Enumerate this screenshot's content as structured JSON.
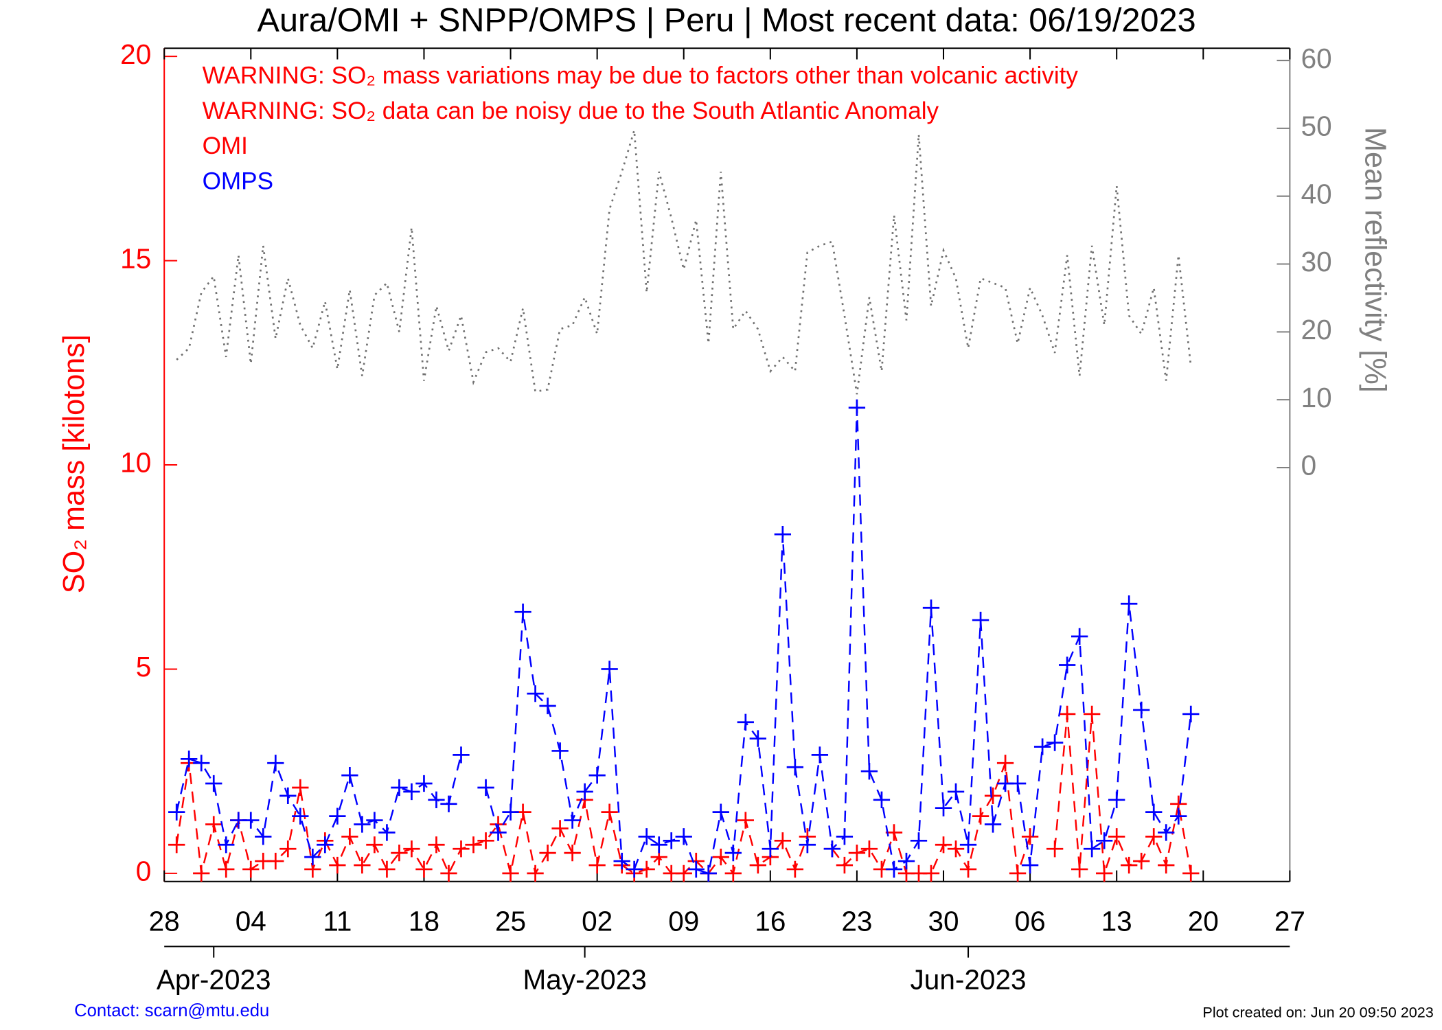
{
  "chart_data": {
    "type": "line",
    "title": "Aura/OMI + SNPP/OMPS | Peru | Most recent data: 06/19/2023",
    "annotations": [
      "WARNING: SO₂ mass variations may be due to factors other than volcanic activity",
      "WARNING: SO₂ data can be noisy due to the South Atlantic Anomaly"
    ],
    "annotation_color": "#ff0000",
    "ylabel": "SO₂ mass [kilotons]",
    "y2label": "Mean reflectivity [%]",
    "y_axis_color": "#ff0000",
    "y2_axis_color": "#808080",
    "footer_left": "Contact: scarn@mtu.edu",
    "footer_left_color": "#0000ff",
    "footer_right": "Plot created on: Jun 20 09:50 2023",
    "xlim": [
      "2023-03-28",
      "2023-06-27"
    ],
    "xticks": [
      {
        "value": "2023-03-28",
        "label": "28"
      },
      {
        "value": "2023-04-04",
        "label": "04"
      },
      {
        "value": "2023-04-11",
        "label": "11"
      },
      {
        "value": "2023-04-18",
        "label": "18"
      },
      {
        "value": "2023-04-25",
        "label": "25"
      },
      {
        "value": "2023-05-02",
        "label": "02"
      },
      {
        "value": "2023-05-09",
        "label": "09"
      },
      {
        "value": "2023-05-16",
        "label": "16"
      },
      {
        "value": "2023-05-23",
        "label": "23"
      },
      {
        "value": "2023-05-30",
        "label": "30"
      },
      {
        "value": "2023-06-06",
        "label": "06"
      },
      {
        "value": "2023-06-13",
        "label": "13"
      },
      {
        "value": "2023-06-20",
        "label": "20"
      },
      {
        "value": "2023-06-27",
        "label": "27"
      }
    ],
    "month_ticks": [
      {
        "value": "2023-04-01",
        "label": "Apr-2023"
      },
      {
        "value": "2023-05-01",
        "label": "May-2023"
      },
      {
        "value": "2023-06-01",
        "label": "Jun-2023"
      }
    ],
    "ylim": [
      -0.2,
      20.2
    ],
    "yticks": [
      0,
      5,
      10,
      15,
      20
    ],
    "y2lim": [
      -61,
      61.8
    ],
    "y2ticks": [
      0,
      10,
      20,
      30,
      40,
      50,
      60
    ],
    "x": [
      "2023-03-29",
      "2023-03-30",
      "2023-03-31",
      "2023-04-01",
      "2023-04-02",
      "2023-04-03",
      "2023-04-04",
      "2023-04-05",
      "2023-04-06",
      "2023-04-07",
      "2023-04-08",
      "2023-04-09",
      "2023-04-10",
      "2023-04-11",
      "2023-04-12",
      "2023-04-13",
      "2023-04-14",
      "2023-04-15",
      "2023-04-16",
      "2023-04-17",
      "2023-04-18",
      "2023-04-19",
      "2023-04-20",
      "2023-04-21",
      "2023-04-22",
      "2023-04-23",
      "2023-04-24",
      "2023-04-25",
      "2023-04-26",
      "2023-04-27",
      "2023-04-28",
      "2023-04-29",
      "2023-04-30",
      "2023-05-01",
      "2023-05-02",
      "2023-05-03",
      "2023-05-04",
      "2023-05-05",
      "2023-05-06",
      "2023-05-07",
      "2023-05-08",
      "2023-05-09",
      "2023-05-10",
      "2023-05-11",
      "2023-05-12",
      "2023-05-13",
      "2023-05-14",
      "2023-05-15",
      "2023-05-16",
      "2023-05-17",
      "2023-05-18",
      "2023-05-19",
      "2023-05-20",
      "2023-05-21",
      "2023-05-22",
      "2023-05-23",
      "2023-05-24",
      "2023-05-25",
      "2023-05-26",
      "2023-05-27",
      "2023-05-28",
      "2023-05-29",
      "2023-05-30",
      "2023-05-31",
      "2023-06-01",
      "2023-06-02",
      "2023-06-03",
      "2023-06-04",
      "2023-06-05",
      "2023-06-06",
      "2023-06-07",
      "2023-06-08",
      "2023-06-09",
      "2023-06-10",
      "2023-06-11",
      "2023-06-12",
      "2023-06-13",
      "2023-06-14",
      "2023-06-15",
      "2023-06-16",
      "2023-06-17",
      "2023-06-18",
      "2023-06-19"
    ],
    "series": [
      {
        "name": "OMI",
        "color": "#ff0000",
        "marker": "+",
        "line_style": "dashed",
        "values": [
          0.7,
          2.7,
          0.0,
          1.2,
          0.1,
          1.3,
          0.1,
          0.3,
          0.3,
          0.6,
          2.1,
          0.1,
          0.8,
          0.2,
          0.9,
          0.2,
          0.7,
          0.1,
          0.5,
          0.6,
          0.1,
          0.7,
          0.0,
          0.6,
          0.7,
          0.8,
          1.2,
          0.0,
          1.5,
          0.0,
          0.5,
          1.1,
          0.5,
          1.8,
          0.2,
          1.5,
          0.2,
          0.0,
          0.1,
          0.4,
          0.0,
          0.0,
          0.3,
          0.0,
          0.4,
          0.0,
          1.3,
          0.2,
          0.4,
          0.8,
          0.1,
          0.9,
          null,
          0.6,
          0.2,
          0.5,
          0.6,
          0.1,
          1.0,
          0.0,
          0.0,
          0.0,
          0.7,
          0.6,
          0.1,
          1.4,
          1.9,
          2.7,
          0.0,
          0.9,
          null,
          0.6,
          3.9,
          0.1,
          3.9,
          0.0,
          0.9,
          0.2,
          0.3,
          0.9,
          0.2,
          1.7,
          0.0
        ]
      },
      {
        "name": "OMPS",
        "color": "#0000ff",
        "marker": "+",
        "line_style": "dashed",
        "values": [
          1.5,
          2.8,
          2.7,
          2.2,
          0.7,
          1.3,
          1.3,
          0.9,
          2.7,
          1.9,
          1.4,
          0.4,
          0.7,
          1.4,
          2.4,
          1.2,
          1.3,
          1.0,
          2.1,
          2.0,
          2.2,
          1.8,
          1.7,
          2.9,
          null,
          2.1,
          1.0,
          1.5,
          6.4,
          4.4,
          4.1,
          3.0,
          1.3,
          2.0,
          2.4,
          5.0,
          0.3,
          0.1,
          0.9,
          0.7,
          0.8,
          0.9,
          0.1,
          0.0,
          1.5,
          0.5,
          3.7,
          3.3,
          0.6,
          8.3,
          2.6,
          0.7,
          2.9,
          0.6,
          0.9,
          11.4,
          2.5,
          1.8,
          0.1,
          0.3,
          0.8,
          6.5,
          1.6,
          2.0,
          0.7,
          6.2,
          1.2,
          2.2,
          2.2,
          0.2,
          3.1,
          3.2,
          5.1,
          5.8,
          0.6,
          0.8,
          1.8,
          6.6,
          4.0,
          1.5,
          1.0,
          1.4,
          3.9
        ]
      },
      {
        "color": "#707070",
        "axis": "y2",
        "line_style": "dotted",
        "values": [
          15.9,
          17.6,
          25.8,
          28.2,
          16.3,
          31.3,
          15.3,
          32.7,
          19,
          27.9,
          21,
          17.6,
          24.5,
          14.5,
          26.2,
          13.5,
          25.4,
          27.2,
          20,
          35.4,
          12.8,
          23.8,
          17.2,
          22.4,
          12.6,
          17,
          17.6,
          15.6,
          23.5,
          11.2,
          11.5,
          20.4,
          21,
          25.1,
          19.7,
          38.1,
          43.6,
          49.7,
          25.8,
          43.6,
          36.8,
          29.2,
          36.5,
          18.3,
          43.6,
          20.4,
          23.1,
          20.4,
          14.2,
          16.3,
          14.2,
          31.7,
          32.7,
          33.3,
          22.4,
          10.8,
          25.1,
          14.2,
          37.2,
          21.7,
          49.1,
          23.8,
          32,
          27.9,
          17.6,
          27.9,
          27.2,
          26.5,
          18.3,
          26.5,
          22.4,
          16.9,
          31.3,
          13.5,
          32.7,
          21,
          41.5,
          22.4,
          19.7,
          26.5,
          12.8,
          31.3,
          14.9
        ]
      }
    ]
  }
}
